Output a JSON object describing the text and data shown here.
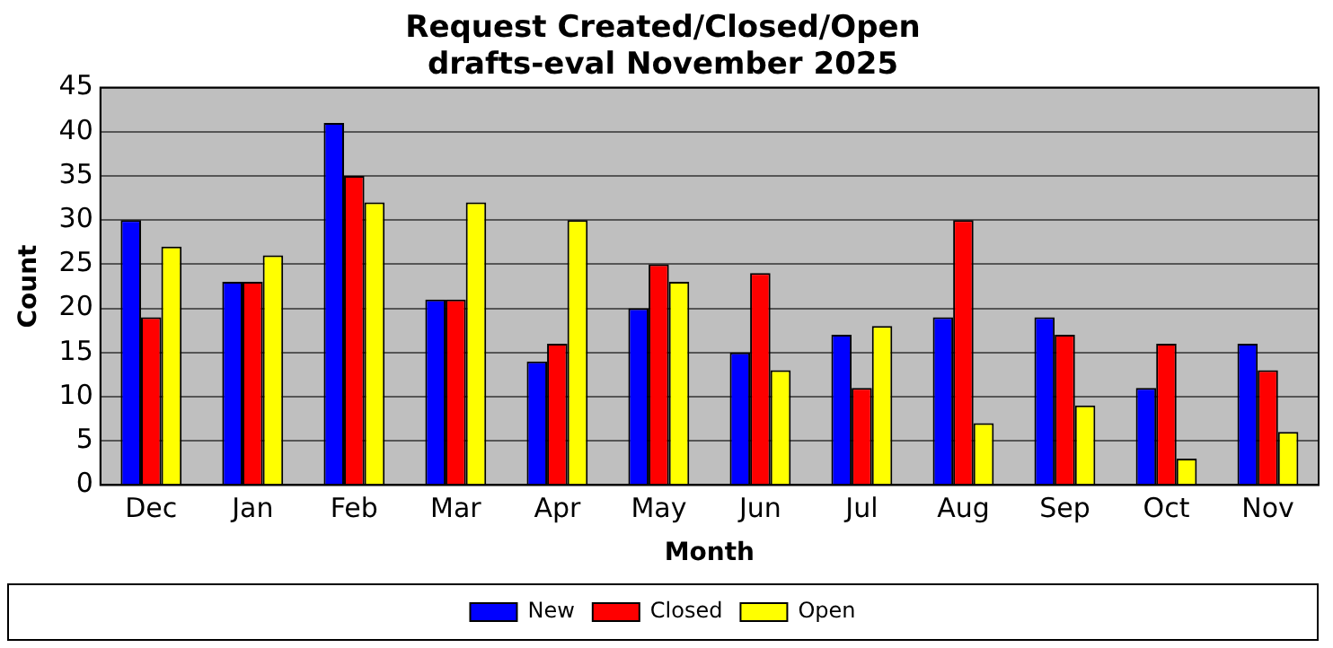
{
  "chart_data": {
    "type": "bar",
    "title": "Request Created/Closed/Open",
    "subtitle": "drafts-eval November 2025",
    "xlabel": "Month",
    "ylabel": "Count",
    "categories": [
      "Dec",
      "Jan",
      "Feb",
      "Mar",
      "Apr",
      "May",
      "Jun",
      "Jul",
      "Aug",
      "Sep",
      "Oct",
      "Nov"
    ],
    "series": [
      {
        "name": "New",
        "color": "#0000ff",
        "values": [
          30,
          23,
          41,
          21,
          14,
          20,
          15,
          17,
          19,
          19,
          11,
          16
        ]
      },
      {
        "name": "Closed",
        "color": "#ff0000",
        "values": [
          19,
          23,
          35,
          21,
          16,
          25,
          24,
          11,
          30,
          17,
          16,
          13
        ]
      },
      {
        "name": "Open",
        "color": "#ffff00",
        "values": [
          27,
          26,
          32,
          32,
          30,
          23,
          13,
          18,
          7,
          9,
          3,
          6
        ]
      }
    ],
    "ylim": [
      0,
      45
    ],
    "yticks": [
      0,
      5,
      10,
      15,
      20,
      25,
      30,
      35,
      40,
      45
    ],
    "grid": "y",
    "legend": "bottom"
  }
}
